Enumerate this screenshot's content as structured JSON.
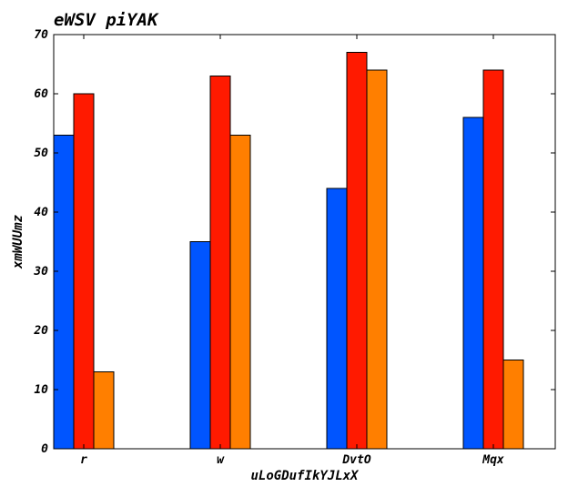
{
  "chart_data": {
    "type": "bar",
    "title": "eWSV piYAK",
    "xlabel": "uLoGDufIkYJLxX",
    "ylabel": "xmWUUmz",
    "categories": [
      "r",
      "w",
      "DvtO",
      "Mqx"
    ],
    "series": [
      {
        "values": [
          53,
          35,
          44,
          56
        ],
        "color": "#0055ff"
      },
      {
        "values": [
          60,
          63,
          67,
          64
        ],
        "color": "#ff1a00"
      },
      {
        "values": [
          13,
          53,
          64,
          15
        ],
        "color": "#ff7f00"
      }
    ],
    "ylim": [
      0,
      70
    ],
    "yticks": [
      0,
      10,
      20,
      30,
      40,
      50,
      60,
      70
    ],
    "grid": false,
    "legend": "none"
  }
}
